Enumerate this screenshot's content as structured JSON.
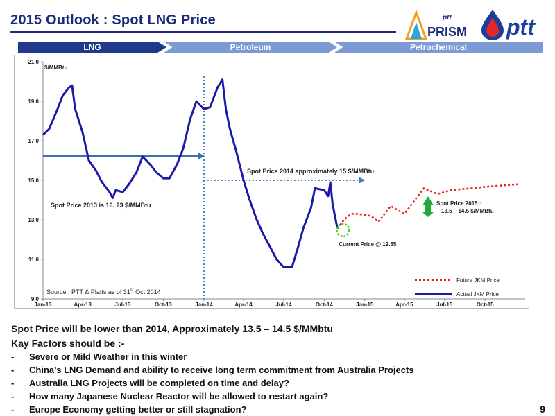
{
  "slide": {
    "title": "2015 Outlook : Spot LNG Price",
    "page_number": "9"
  },
  "logos": {
    "prism": {
      "small_text": "ptt",
      "text": "PRISM"
    },
    "ptt": {
      "text": "ptt"
    }
  },
  "process_bar": {
    "segments": [
      "LNG",
      "Petroleum",
      "Petrochemical"
    ]
  },
  "chart_data": {
    "type": "line",
    "unit_label": "$/MMBtu",
    "ylim": [
      9.0,
      21.0
    ],
    "y_ticks": [
      "9.0",
      "11.0",
      "13.0",
      "15.0",
      "17.0",
      "19.0",
      "21.0"
    ],
    "x_ticks": [
      "Jan-13",
      "Apr-13",
      "Jul-13",
      "Oct-13",
      "Jan-14",
      "Apr-14",
      "Jul-14",
      "Oct-14",
      "Jan-15",
      "Apr-15",
      "Jul-15",
      "Oct-15"
    ],
    "grid": false,
    "legend_position": "bottom-right",
    "series": [
      {
        "name": "Actual JKM Price",
        "color": "#1a1aa6",
        "style": "solid",
        "points": [
          [
            "2013-01-01",
            17.3
          ],
          [
            "2013-01-15",
            17.6
          ],
          [
            "2013-02-01",
            18.5
          ],
          [
            "2013-02-15",
            19.3
          ],
          [
            "2013-03-01",
            19.7
          ],
          [
            "2013-03-08",
            19.8
          ],
          [
            "2013-03-15",
            18.6
          ],
          [
            "2013-04-01",
            17.4
          ],
          [
            "2013-04-15",
            16.0
          ],
          [
            "2013-05-01",
            15.5
          ],
          [
            "2013-05-15",
            14.9
          ],
          [
            "2013-06-01",
            14.4
          ],
          [
            "2013-06-08",
            14.1
          ],
          [
            "2013-06-15",
            14.5
          ],
          [
            "2013-07-01",
            14.4
          ],
          [
            "2013-07-15",
            14.8
          ],
          [
            "2013-08-01",
            15.4
          ],
          [
            "2013-08-15",
            16.2
          ],
          [
            "2013-09-01",
            15.8
          ],
          [
            "2013-09-15",
            15.4
          ],
          [
            "2013-10-01",
            15.1
          ],
          [
            "2013-10-15",
            15.1
          ],
          [
            "2013-11-01",
            15.8
          ],
          [
            "2013-11-15",
            16.6
          ],
          [
            "2013-12-01",
            18.1
          ],
          [
            "2013-12-15",
            19.0
          ],
          [
            "2014-01-01",
            18.6
          ],
          [
            "2014-01-15",
            18.7
          ],
          [
            "2014-02-01",
            19.7
          ],
          [
            "2014-02-12",
            20.1
          ],
          [
            "2014-02-20",
            18.6
          ],
          [
            "2014-03-01",
            17.6
          ],
          [
            "2014-03-15",
            16.5
          ],
          [
            "2014-04-01",
            15.0
          ],
          [
            "2014-04-15",
            14.0
          ],
          [
            "2014-05-01",
            13.0
          ],
          [
            "2014-05-15",
            12.3
          ],
          [
            "2014-06-01",
            11.6
          ],
          [
            "2014-06-15",
            11.0
          ],
          [
            "2014-07-01",
            10.6
          ],
          [
            "2014-07-20",
            10.6
          ],
          [
            "2014-08-01",
            11.5
          ],
          [
            "2014-08-15",
            12.6
          ],
          [
            "2014-09-01",
            13.6
          ],
          [
            "2014-09-10",
            14.6
          ],
          [
            "2014-10-01",
            14.5
          ],
          [
            "2014-10-10",
            14.2
          ],
          [
            "2014-10-15",
            14.9
          ],
          [
            "2014-10-20",
            13.8
          ],
          [
            "2014-10-31",
            12.55
          ]
        ]
      },
      {
        "name": "Future JKM Price",
        "color": "#e62020",
        "style": "dotted",
        "points": [
          [
            "2014-10-31",
            12.55
          ],
          [
            "2014-11-15",
            13.0
          ],
          [
            "2014-12-01",
            13.3
          ],
          [
            "2014-12-15",
            13.3
          ],
          [
            "2015-01-15",
            13.2
          ],
          [
            "2015-02-01",
            12.9
          ],
          [
            "2015-03-01",
            13.7
          ],
          [
            "2015-04-01",
            13.3
          ],
          [
            "2015-05-15",
            14.6
          ],
          [
            "2015-06-15",
            14.3
          ],
          [
            "2015-07-15",
            14.5
          ],
          [
            "2015-09-01",
            14.6
          ],
          [
            "2015-10-15",
            14.7
          ],
          [
            "2015-12-15",
            14.8
          ]
        ]
      }
    ],
    "avg_2013": {
      "value": 16.23
    },
    "avg_2014": {
      "value": 15.0
    },
    "annotations": {
      "avg_2013": "Spot Price 2013 is 16. 23 $/MMBtu",
      "avg_2014": "Spot Price 2014  approximately 15 $/MMBtu",
      "forecast_2015_line1": "Spot Price 2015 :",
      "forecast_2015_line2": "13.5 – 14.5 $/MMBtu",
      "current_price": "Current Price @ 12.55"
    },
    "source": {
      "label": "Source",
      "text": " : PTT & Platts as of 31",
      "superscript": "st",
      "suffix": " Oct 2014"
    }
  },
  "summary": {
    "headline": "Spot Price will be lower than 2014, Approximately 13.5 – 14.5 $/MMbtu",
    "factors_title": "Kay Factors should be :-",
    "bullet_marker": "-",
    "bullets": [
      "Severe or Mild Weather in this winter",
      "China’s LNG Demand and ability to receive long term commitment from Australia Projects",
      "Australia LNG Projects will be completed on time and delay?",
      "How many Japanese Nuclear Reactor will be allowed to restart again?",
      "Europe Economy getting better or still stagnation?"
    ]
  }
}
